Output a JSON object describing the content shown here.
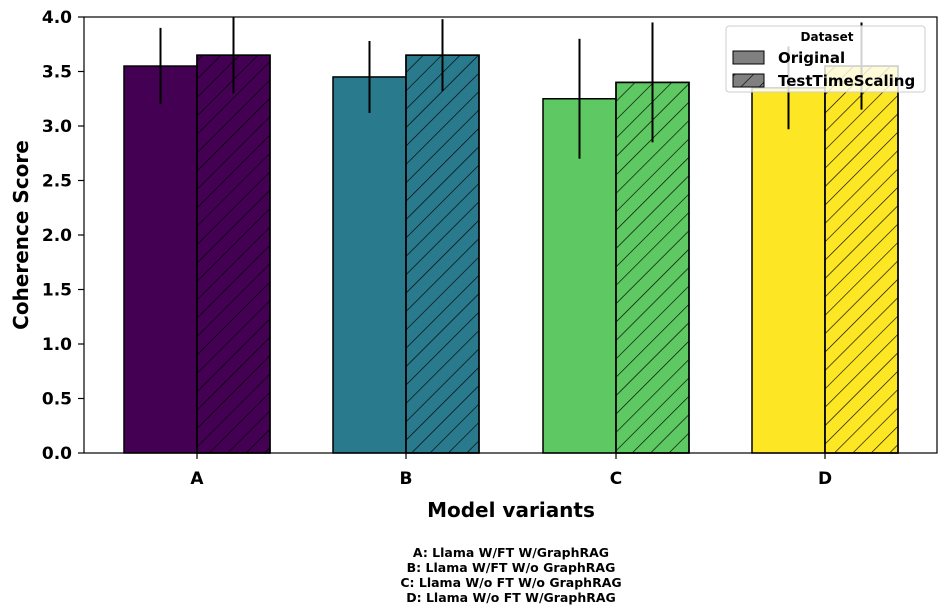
{
  "chart_data": {
    "type": "bar",
    "title": "",
    "xlabel": "Model variants",
    "ylabel": "Coherence Score",
    "ylim": [
      0,
      4.0
    ],
    "yticks": [
      "0.0",
      "0.5",
      "1.0",
      "1.5",
      "2.0",
      "2.5",
      "3.0",
      "3.5",
      "4.0"
    ],
    "categories": [
      "A",
      "B",
      "C",
      "D"
    ],
    "category_colors": [
      "#440154",
      "#2a7a8e",
      "#5ec962",
      "#fde725"
    ],
    "series": [
      {
        "name": "Original",
        "hatch": false,
        "values": [
          3.55,
          3.45,
          3.25,
          3.35
        ],
        "errors": [
          0.35,
          0.33,
          0.55,
          0.38
        ]
      },
      {
        "name": "TestTimeScaling",
        "hatch": true,
        "values": [
          3.65,
          3.65,
          3.4,
          3.55
        ],
        "errors": [
          0.35,
          0.33,
          0.55,
          0.4
        ]
      }
    ],
    "legend": {
      "title": "Dataset",
      "position": "top-right"
    },
    "grid": false,
    "footnote": [
      "A: Llama W/FT W/GraphRAG",
      "B: Llama W/FT W/o GraphRAG",
      "C: Llama W/o FT W/o GraphRAG",
      "D: Llama W/o FT W/GraphRAG"
    ]
  }
}
